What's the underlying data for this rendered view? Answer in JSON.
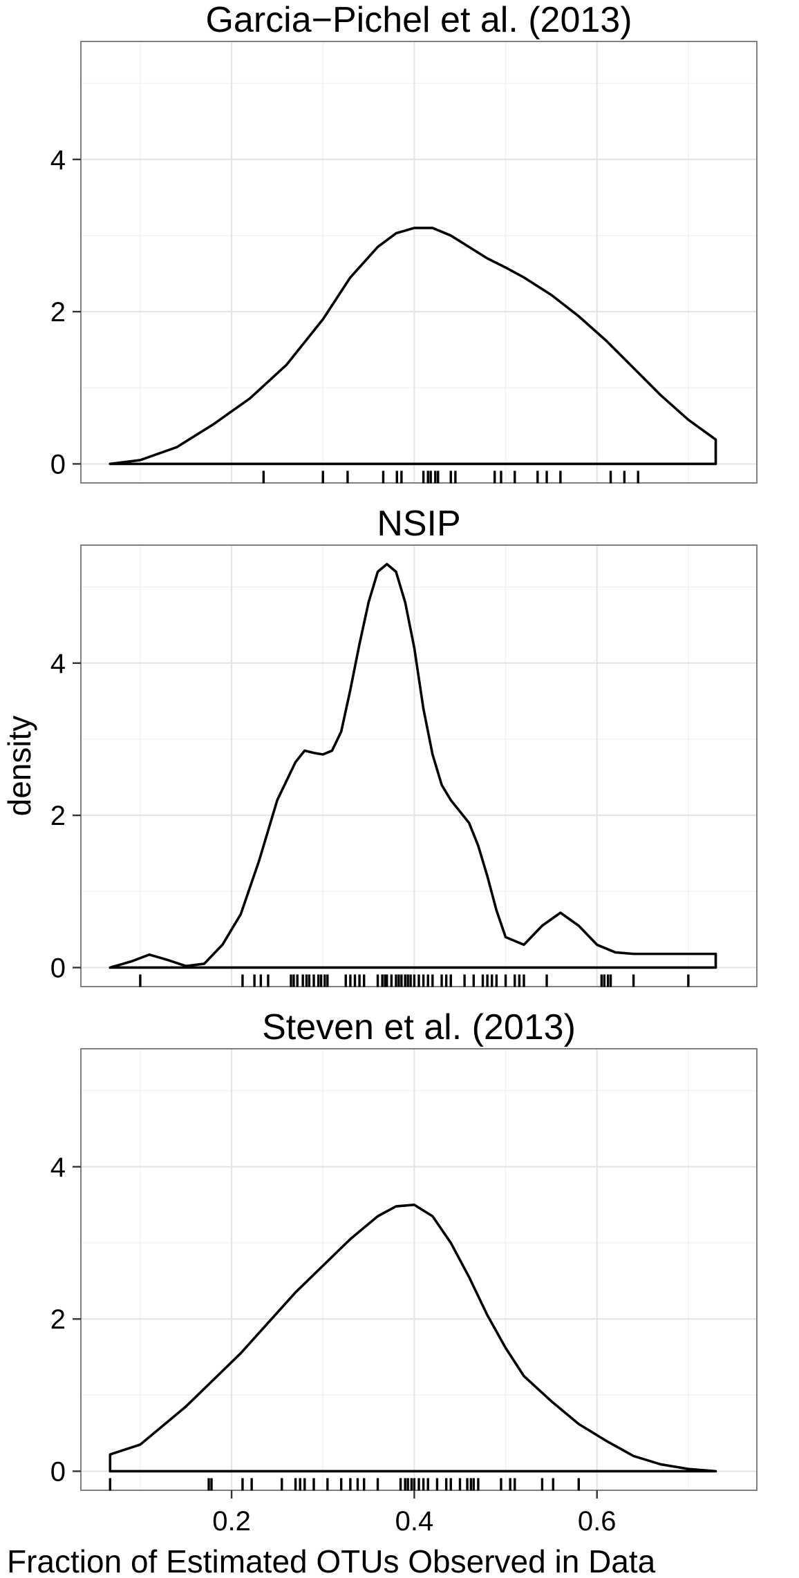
{
  "chart_data": [
    {
      "type": "area",
      "title": "Garcia−Pichel et al. (2013)",
      "xlim": [
        0.035,
        0.775
      ],
      "ylim": [
        -0.25,
        5.55
      ],
      "y_ticks": [
        0,
        2,
        4
      ],
      "x_ticks": [
        0.2,
        0.4,
        0.6
      ],
      "grid": true,
      "density": {
        "x": [
          0.067,
          0.1,
          0.14,
          0.18,
          0.22,
          0.26,
          0.3,
          0.33,
          0.36,
          0.38,
          0.4,
          0.42,
          0.44,
          0.46,
          0.48,
          0.5,
          0.52,
          0.55,
          0.58,
          0.61,
          0.64,
          0.67,
          0.7,
          0.73
        ],
        "y": [
          0.0,
          0.05,
          0.22,
          0.52,
          0.86,
          1.3,
          1.9,
          2.45,
          2.85,
          3.03,
          3.1,
          3.1,
          3.0,
          2.85,
          2.7,
          2.58,
          2.45,
          2.22,
          1.94,
          1.62,
          1.26,
          0.9,
          0.58,
          0.32
        ]
      },
      "rug": [
        0.235,
        0.3,
        0.327,
        0.366,
        0.381,
        0.386,
        0.41,
        0.415,
        0.418,
        0.423,
        0.426,
        0.44,
        0.445,
        0.488,
        0.495,
        0.51,
        0.535,
        0.545,
        0.56,
        0.615,
        0.63,
        0.645
      ]
    },
    {
      "type": "area",
      "title": "NSIP",
      "ylabel": "density",
      "xlim": [
        0.035,
        0.775
      ],
      "ylim": [
        -0.25,
        5.55
      ],
      "y_ticks": [
        0,
        2,
        4
      ],
      "x_ticks": [
        0.2,
        0.4,
        0.6
      ],
      "grid": true,
      "density": {
        "x": [
          0.067,
          0.09,
          0.11,
          0.13,
          0.15,
          0.17,
          0.19,
          0.21,
          0.23,
          0.25,
          0.27,
          0.28,
          0.29,
          0.3,
          0.31,
          0.32,
          0.33,
          0.34,
          0.35,
          0.36,
          0.37,
          0.38,
          0.39,
          0.4,
          0.41,
          0.42,
          0.43,
          0.44,
          0.45,
          0.46,
          0.47,
          0.48,
          0.49,
          0.5,
          0.52,
          0.54,
          0.56,
          0.58,
          0.6,
          0.62,
          0.64,
          0.66,
          0.68,
          0.7,
          0.73
        ],
        "y": [
          0.0,
          0.08,
          0.17,
          0.1,
          0.02,
          0.05,
          0.3,
          0.7,
          1.4,
          2.2,
          2.7,
          2.85,
          2.82,
          2.8,
          2.85,
          3.1,
          3.65,
          4.25,
          4.8,
          5.2,
          5.3,
          5.2,
          4.8,
          4.2,
          3.4,
          2.8,
          2.4,
          2.2,
          2.05,
          1.9,
          1.6,
          1.2,
          0.75,
          0.4,
          0.3,
          0.55,
          0.72,
          0.55,
          0.3,
          0.2,
          0.18,
          0.18,
          0.18,
          0.18,
          0.18
        ]
      },
      "rug": [
        0.1,
        0.212,
        0.225,
        0.232,
        0.24,
        0.265,
        0.268,
        0.272,
        0.278,
        0.282,
        0.285,
        0.29,
        0.295,
        0.298,
        0.302,
        0.305,
        0.325,
        0.33,
        0.335,
        0.34,
        0.345,
        0.36,
        0.365,
        0.368,
        0.37,
        0.375,
        0.38,
        0.383,
        0.386,
        0.39,
        0.393,
        0.396,
        0.4,
        0.405,
        0.41,
        0.415,
        0.42,
        0.43,
        0.435,
        0.44,
        0.455,
        0.465,
        0.475,
        0.48,
        0.485,
        0.49,
        0.5,
        0.51,
        0.515,
        0.52,
        0.545,
        0.605,
        0.608,
        0.612,
        0.615,
        0.64,
        0.7
      ]
    },
    {
      "type": "area",
      "title": "Steven et al. (2013)",
      "xlabel": "Fraction of Estimated OTUs Observed in Data",
      "xlim": [
        0.035,
        0.775
      ],
      "ylim": [
        -0.25,
        5.55
      ],
      "y_ticks": [
        0,
        2,
        4
      ],
      "x_ticks": [
        0.2,
        0.4,
        0.6
      ],
      "x_tick_labels": [
        "0.2",
        "0.4",
        "0.6"
      ],
      "grid": true,
      "density": {
        "x": [
          0.067,
          0.1,
          0.12,
          0.15,
          0.18,
          0.21,
          0.24,
          0.27,
          0.3,
          0.33,
          0.36,
          0.38,
          0.4,
          0.42,
          0.44,
          0.46,
          0.48,
          0.5,
          0.52,
          0.55,
          0.58,
          0.61,
          0.64,
          0.67,
          0.7,
          0.73
        ],
        "y": [
          0.22,
          0.35,
          0.55,
          0.85,
          1.2,
          1.55,
          1.95,
          2.35,
          2.7,
          3.05,
          3.35,
          3.48,
          3.5,
          3.35,
          3.0,
          2.55,
          2.05,
          1.62,
          1.25,
          0.92,
          0.62,
          0.4,
          0.2,
          0.09,
          0.03,
          0.0
        ]
      },
      "rug": [
        0.067,
        0.175,
        0.178,
        0.212,
        0.222,
        0.255,
        0.27,
        0.275,
        0.28,
        0.29,
        0.305,
        0.32,
        0.33,
        0.338,
        0.345,
        0.36,
        0.385,
        0.39,
        0.393,
        0.397,
        0.4,
        0.405,
        0.41,
        0.415,
        0.425,
        0.435,
        0.44,
        0.45,
        0.458,
        0.462,
        0.465,
        0.47,
        0.495,
        0.505,
        0.51,
        0.54,
        0.552,
        0.58
      ]
    }
  ]
}
